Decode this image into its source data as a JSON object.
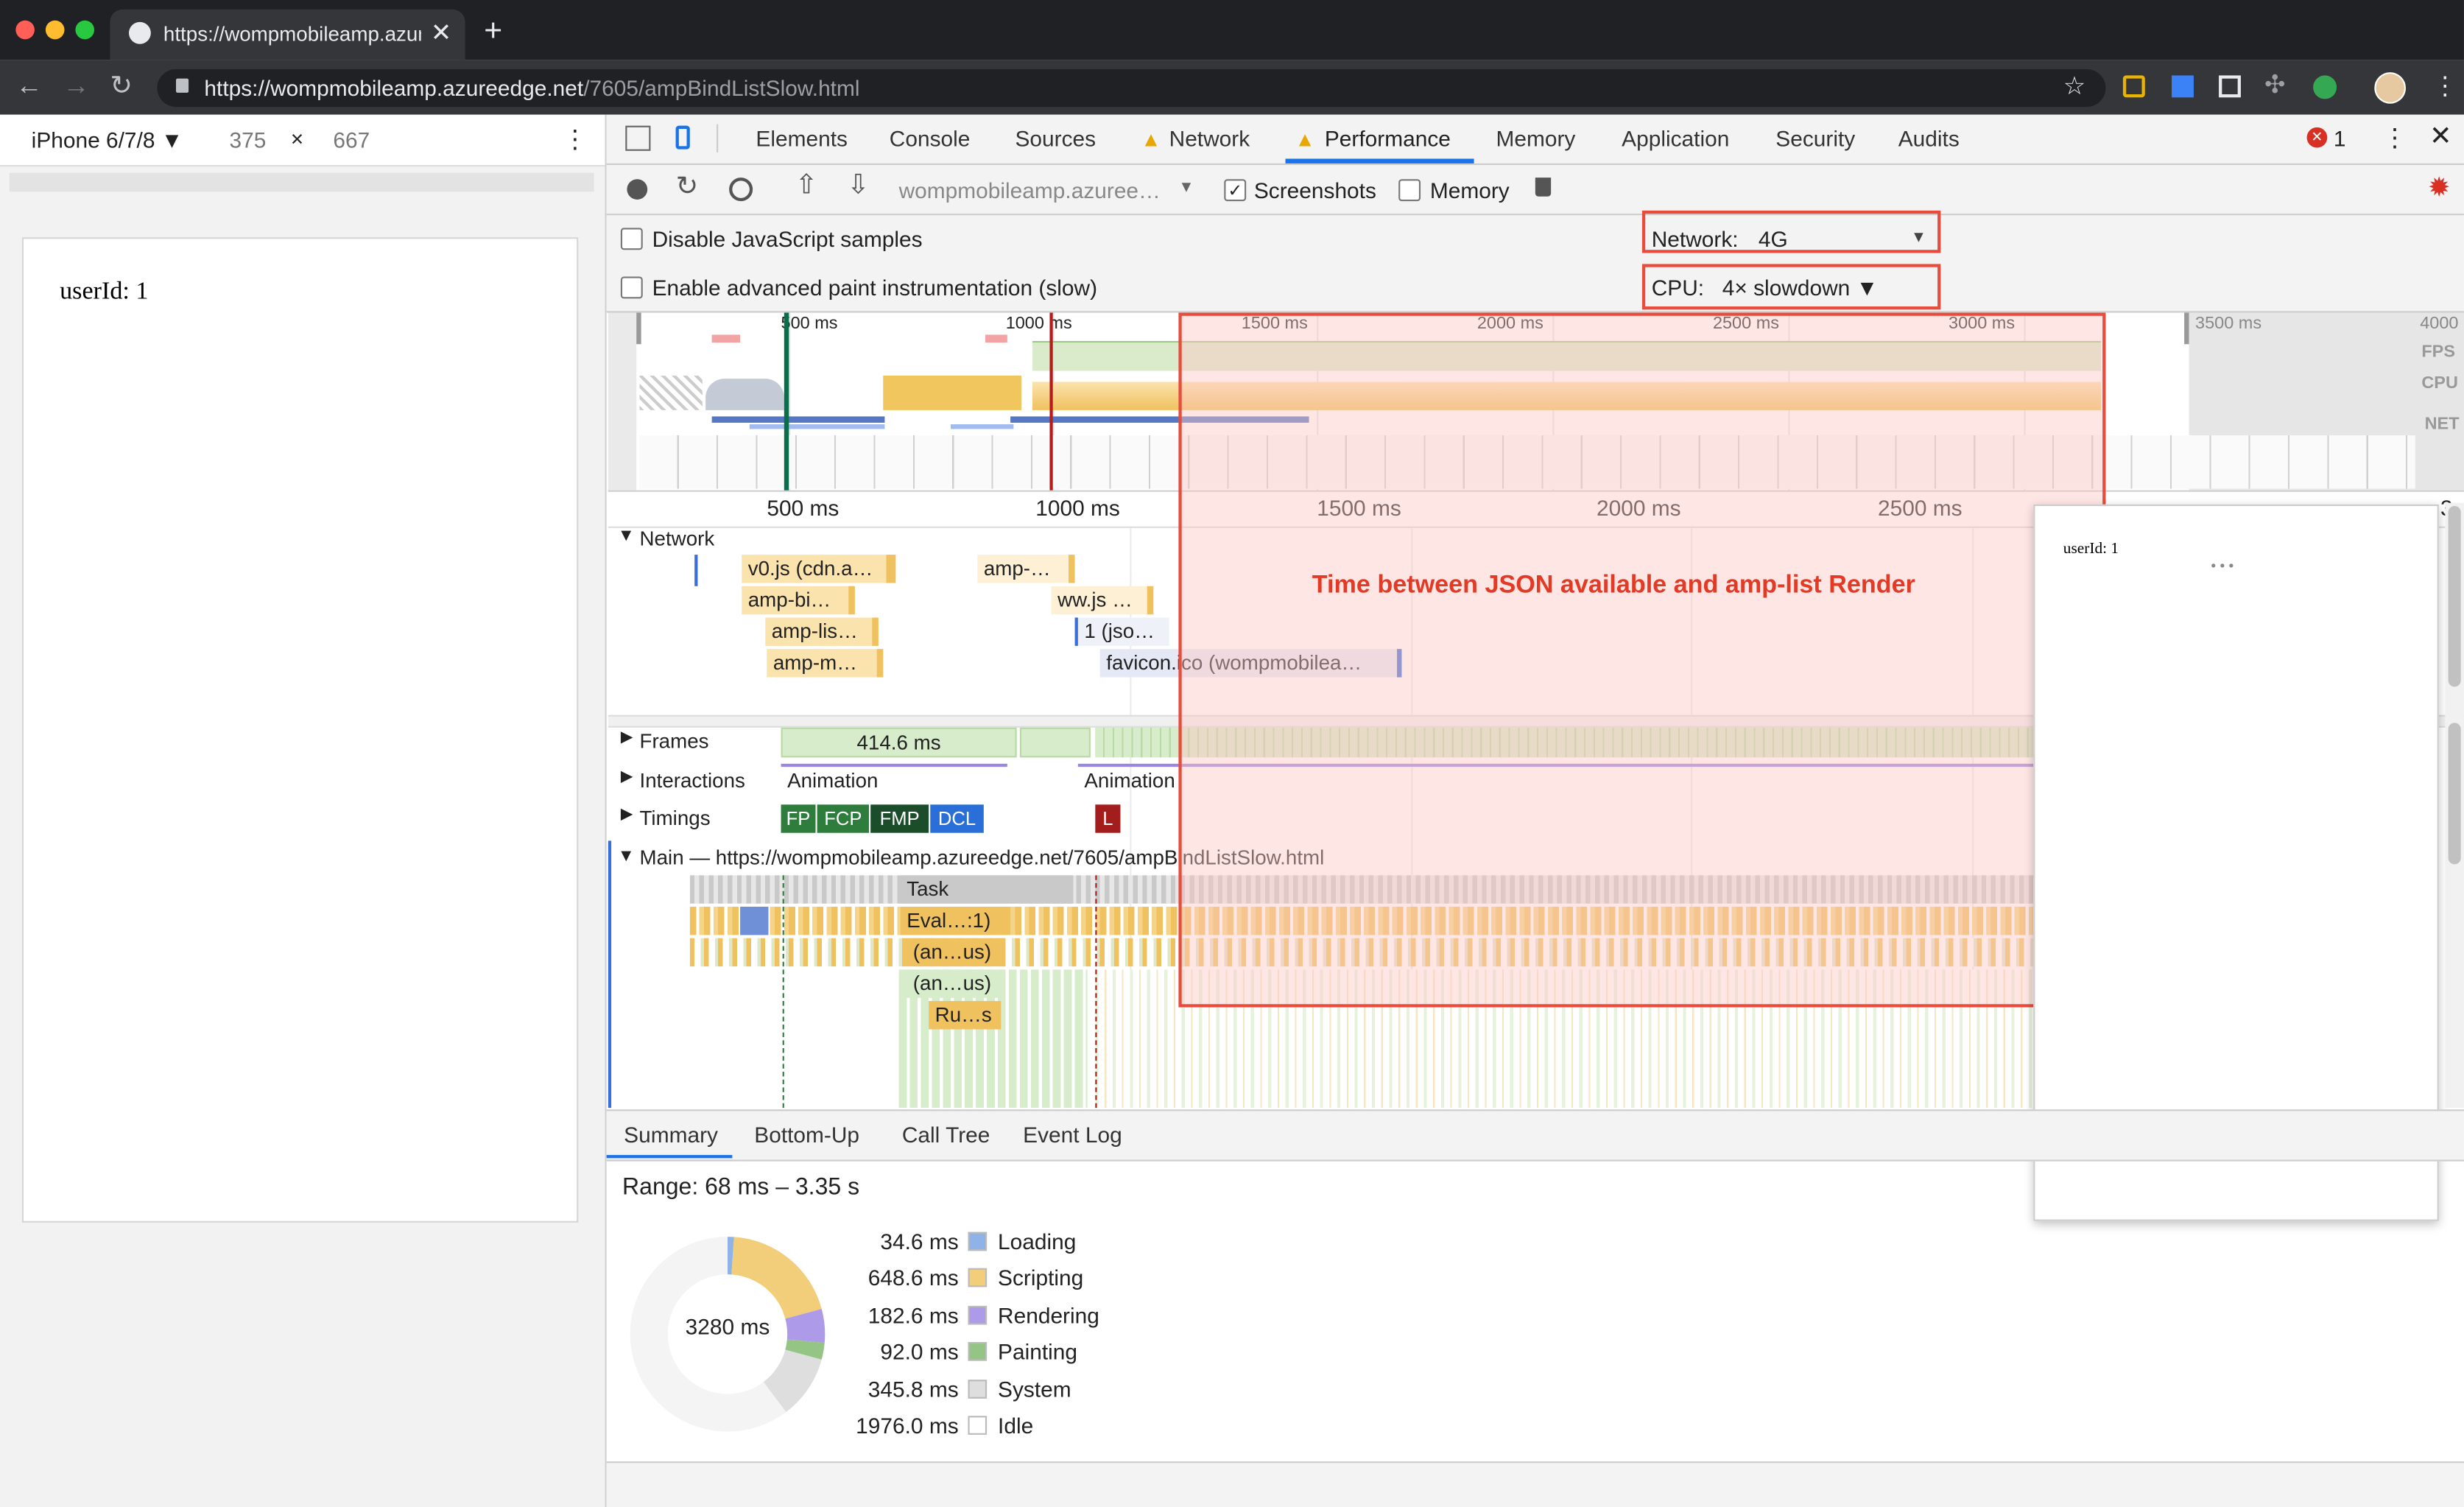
{
  "browser": {
    "tab_title": "https://wompmobileamp.azure",
    "url_host": "https://wompmobileamp.azureedge.net",
    "url_path": "/7605/ampBindListSlow.html"
  },
  "device": {
    "name": "iPhone 6/7/8 ▼",
    "width": "375",
    "times": "×",
    "height": "667"
  },
  "page": {
    "text": "userId: 1"
  },
  "devtools": {
    "tabs": [
      "Elements",
      "Console",
      "Sources",
      "Network",
      "Performance",
      "Memory",
      "Application",
      "Security",
      "Audits"
    ],
    "error_count": "1",
    "recording_select": "wompmobileamp.azuree…",
    "screenshots_label": "Screenshots",
    "memory_label": "Memory",
    "disable_js_label": "Disable JavaScript samples",
    "advanced_paint_label": "Enable advanced paint instrumentation (slow)",
    "network_label": "Network:",
    "network_value": "4G",
    "cpu_label": "CPU:",
    "cpu_value": "4× slowdown ▼"
  },
  "overview": {
    "ticks": [
      "500 ms",
      "1000 ms",
      "1500 ms",
      "2000 ms",
      "2500 ms",
      "3000 ms",
      "3500 ms",
      "4000"
    ],
    "lane_labels": [
      "FPS",
      "CPU",
      "NET"
    ]
  },
  "timeline": {
    "ruler": [
      "500 ms",
      "1000 ms",
      "1500 ms",
      "2000 ms",
      "2500 ms",
      "3000 ms",
      "3"
    ],
    "network_label": "Network",
    "network_requests": [
      "v0.js (cdn.a…",
      "amp-…",
      "amp-bi…",
      "ww.js …",
      "amp-lis…",
      "1 (jso…",
      "amp-m…",
      "favicon.ico (wompmobilea…"
    ],
    "annotation": "Time between JSON available and amp-list Render",
    "more_dots": "…",
    "frames_label": "Frames",
    "frames_value": "414.6 ms",
    "interactions_label": "Interactions",
    "interaction_1": "Animation",
    "interaction_2": "Animation",
    "timings_label": "Timings",
    "timing_markers": [
      "FP",
      "FCP",
      "FMP",
      "DCL",
      "L"
    ],
    "main_label": "Main — https://wompmobileamp.azureedge.net/7605/ampBindListSlow.html",
    "flame": [
      "Task",
      "Eval…:1)",
      "(an…us)",
      "(an…us)",
      "Ru…s"
    ]
  },
  "screenshot_popup": {
    "text": "userId: 1",
    "dots": "• • •"
  },
  "bottom_tabs": [
    "Summary",
    "Bottom-Up",
    "Call Tree",
    "Event Log"
  ],
  "summary": {
    "range": "Range: 68 ms – 3.35 s",
    "total": "3280 ms",
    "rows": [
      {
        "value": "34.6 ms",
        "label": "Loading",
        "color": "#8fb3e8"
      },
      {
        "value": "648.6 ms",
        "label": "Scripting",
        "color": "#f2cd7a"
      },
      {
        "value": "182.6 ms",
        "label": "Rendering",
        "color": "#ad9ae8"
      },
      {
        "value": "92.0 ms",
        "label": "Painting",
        "color": "#95c585"
      },
      {
        "value": "345.8 ms",
        "label": "System",
        "color": "#dedede"
      },
      {
        "value": "1976.0 ms",
        "label": "Idle",
        "color": "#ffffff"
      }
    ]
  },
  "colors": {
    "highlight_border": "#e74c3c",
    "highlight_fill": "#fde0df",
    "annotation_text": "#e23a25",
    "accent_blue": "#1a73e8"
  }
}
